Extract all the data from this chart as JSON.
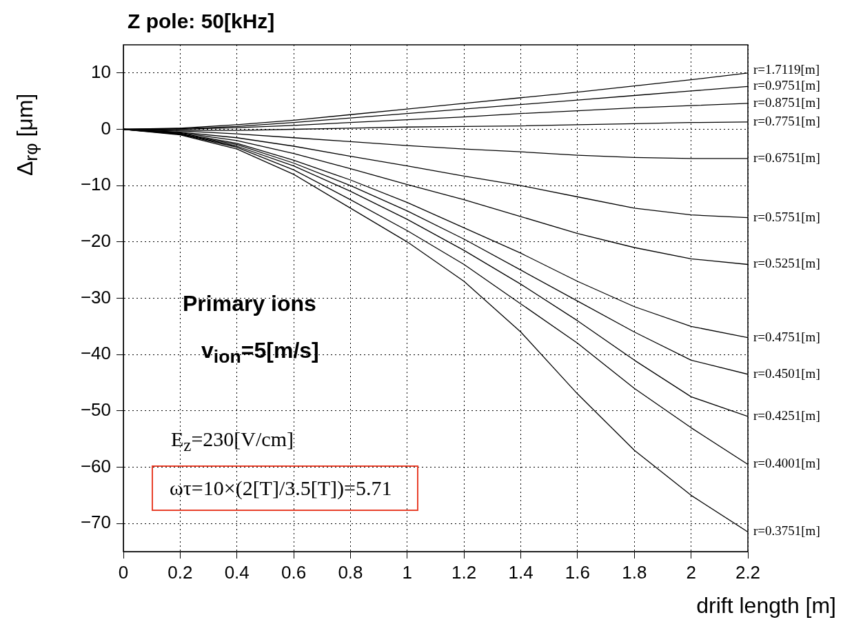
{
  "chart_data": {
    "type": "line",
    "title": "Z pole: 50[kHz]",
    "xlabel": "drift length [m]",
    "ylabel": "Δ$_{rφ}$ [μm]",
    "annotations": [
      "Primary ions",
      "v$_{ion}$=5[m/s]",
      "E$_{z}$=230[V/cm]",
      "ωτ=10×(2[T]/3.5[T])=5.71"
    ],
    "x": [
      0,
      0.2,
      0.4,
      0.6,
      0.8,
      1.0,
      1.2,
      1.4,
      1.6,
      1.8,
      2.0,
      2.2
    ],
    "series": [
      {
        "name": "r=1.7119[m]",
        "color": "#000000",
        "values": [
          0,
          0.2,
          0.8,
          1.6,
          2.6,
          3.6,
          4.6,
          5.6,
          6.6,
          7.7,
          8.8,
          10
        ]
      },
      {
        "name": "r=0.9751[m]",
        "color": "#000000",
        "values": [
          0,
          0.1,
          0.5,
          1.2,
          2,
          2.8,
          3.6,
          4.4,
          5.2,
          6,
          6.8,
          7.6
        ]
      },
      {
        "name": "r=0.8751[m]",
        "color": "#000000",
        "values": [
          0,
          0,
          0.3,
          0.7,
          1.2,
          1.7,
          2.2,
          2.8,
          3.3,
          3.8,
          4.2,
          4.6
        ]
      },
      {
        "name": "r=0.7751[m]",
        "color": "#000000",
        "values": [
          0,
          -0.2,
          -0.2,
          0,
          0.2,
          0.4,
          0.5,
          0.6,
          0.8,
          1,
          1.2,
          1.3
        ]
      },
      {
        "name": "r=0.6751[m]",
        "color": "#000000",
        "values": [
          0,
          -0.3,
          -0.8,
          -1.5,
          -2.2,
          -2.9,
          -3.5,
          -4,
          -4.6,
          -5,
          -5.2,
          -5.2
        ]
      },
      {
        "name": "r=0.5751[m]",
        "color": "#000000",
        "values": [
          0,
          -0.5,
          -1.5,
          -3,
          -4.8,
          -6.5,
          -8.3,
          -10,
          -12,
          -14,
          -15.2,
          -15.7
        ]
      },
      {
        "name": "r=0.5251[m]",
        "color": "#000000",
        "values": [
          0,
          -0.6,
          -2,
          -4.3,
          -7,
          -9.8,
          -12.5,
          -15.5,
          -18.5,
          -21,
          -23,
          -24
        ]
      },
      {
        "name": "r=0.4751[m]",
        "color": "#000000",
        "values": [
          0,
          -0.7,
          -2.5,
          -5.5,
          -9,
          -13,
          -17.5,
          -22,
          -27,
          -31.5,
          -35,
          -37
        ]
      },
      {
        "name": "r=0.4501[m]",
        "color": "#000000",
        "values": [
          0,
          -0.8,
          -2.7,
          -6,
          -10,
          -14.5,
          -19.5,
          -25,
          -30.5,
          -36,
          -41,
          -43.5
        ]
      },
      {
        "name": "r=0.4251[m]",
        "color": "#000000",
        "values": [
          0,
          -0.8,
          -3,
          -6.5,
          -11,
          -16,
          -21.5,
          -27.5,
          -34,
          -41,
          -47.5,
          -51
        ]
      },
      {
        "name": "r=0.4001[m]",
        "color": "#000000",
        "values": [
          0,
          -0.9,
          -3.2,
          -7.2,
          -12.5,
          -18,
          -24,
          -31,
          -38,
          -46,
          -53,
          -59.5
        ]
      },
      {
        "name": "r=0.3751[m]",
        "color": "#000000",
        "values": [
          0,
          -1,
          -3.5,
          -8,
          -14,
          -20,
          -27,
          -36,
          -47,
          -57,
          -65,
          -71.5
        ]
      }
    ],
    "xlim": [
      0,
      2.2
    ],
    "ylim": [
      -75,
      15
    ],
    "xticks": [
      0,
      0.2,
      0.4,
      0.6,
      0.8,
      1,
      1.2,
      1.4,
      1.6,
      1.8,
      2,
      2.2
    ],
    "yticks": [
      {
        "value": -70,
        "label": "−70"
      },
      {
        "value": -60,
        "label": "−60"
      },
      {
        "value": -50,
        "label": "−50"
      },
      {
        "value": -40,
        "label": "−40"
      },
      {
        "value": -30,
        "label": "−30"
      },
      {
        "value": -20,
        "label": "−20"
      },
      {
        "value": -10,
        "label": "−10"
      },
      0,
      10
    ],
    "grid": true,
    "legend": false,
    "marker": "none",
    "line_style": "solid"
  }
}
